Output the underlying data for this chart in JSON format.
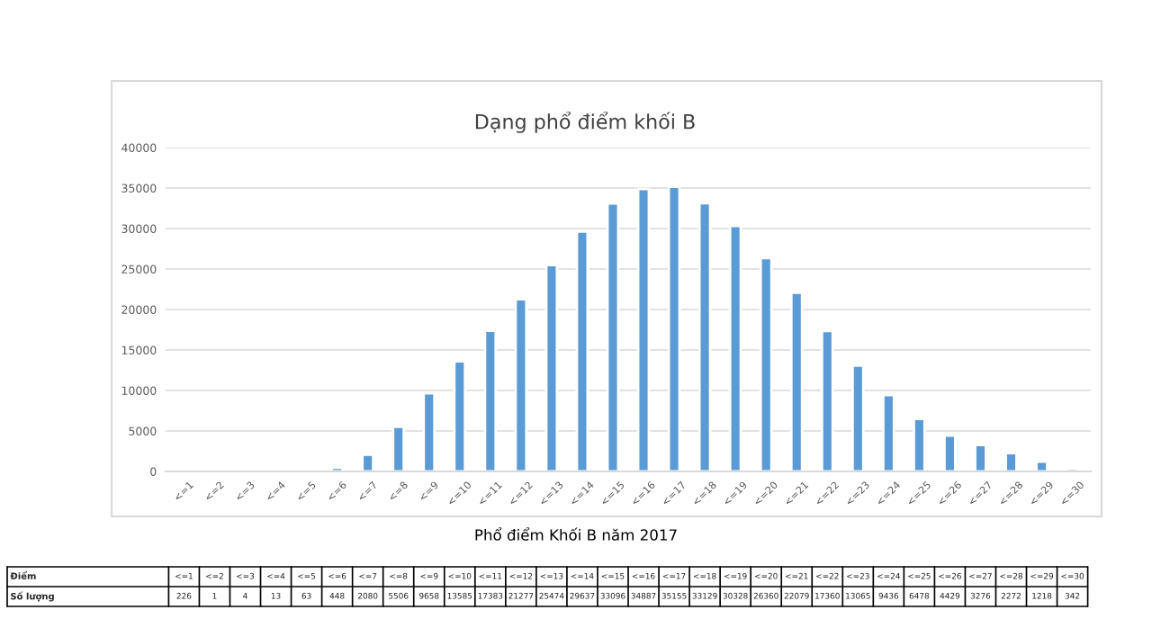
{
  "chart_data": {
    "type": "bar",
    "title": "Dạng phổ điểm khối B",
    "subtitle": "Phổ điểm Khối B năm 2017",
    "categories": [
      "<=1",
      "<=2",
      "<=3",
      "<=4",
      "<=5",
      "<=6",
      "<=7",
      "<=8",
      "<=9",
      "<=10",
      "<=11",
      "<=12",
      "<=13",
      "<=14",
      "<=15",
      "<=16",
      "<=17",
      "<=18",
      "<=19",
      "<=20",
      "<=21",
      "<=22",
      "<=23",
      "<=24",
      "<=25",
      "<=26",
      "<=27",
      "<=28",
      "<=29",
      "<=30"
    ],
    "values": [
      226,
      1,
      4,
      13,
      63,
      448,
      2080,
      5506,
      9658,
      13585,
      17383,
      21277,
      25474,
      29637,
      33096,
      34887,
      35155,
      33129,
      30328,
      26360,
      22079,
      17360,
      13065,
      9436,
      6478,
      4429,
      3276,
      2272,
      1218,
      342
    ],
    "color": "#5b9bd5",
    "ylim": [
      0,
      40000
    ],
    "yticks": [
      0,
      5000,
      10000,
      15000,
      20000,
      25000,
      30000,
      35000,
      40000
    ],
    "grid": "y",
    "data_labels": true,
    "annotations": [
      "Điểm",
      "Số lượng"
    ]
  }
}
